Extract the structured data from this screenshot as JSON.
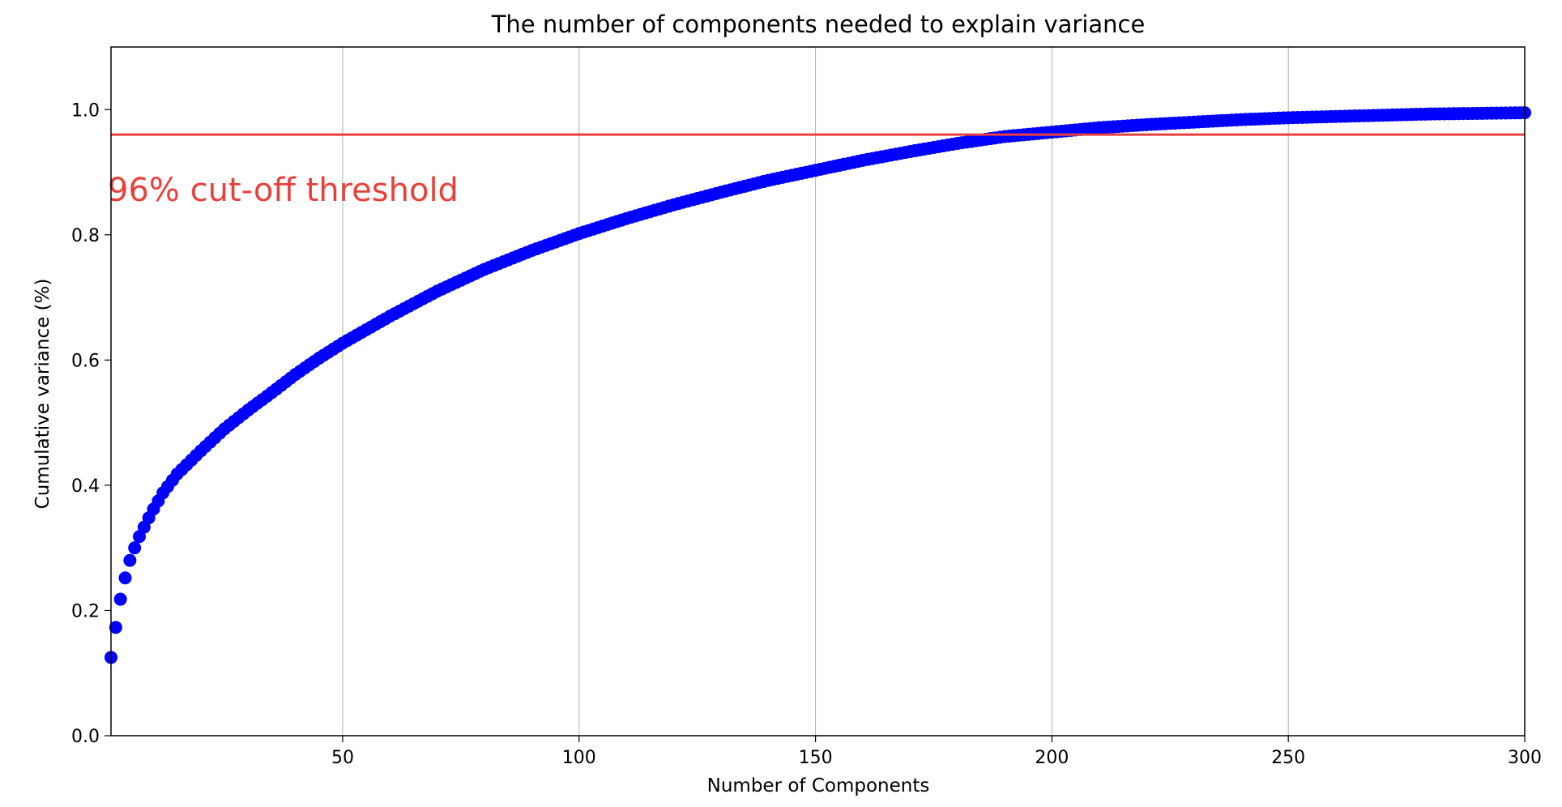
{
  "chart_data": {
    "type": "scatter",
    "title": "The number of components needed to explain variance",
    "xlabel": "Number of Components",
    "ylabel": "Cumulative variance (%)",
    "xlim": [
      1,
      300
    ],
    "ylim": [
      0.0,
      1.1
    ],
    "xticks": [
      "50",
      "100",
      "150",
      "200",
      "250",
      "300"
    ],
    "xtick_values": [
      50,
      100,
      150,
      200,
      250,
      300
    ],
    "yticks": [
      "0.0",
      "0.2",
      "0.4",
      "0.6",
      "0.8",
      "1.0"
    ],
    "ytick_values": [
      0.0,
      0.2,
      0.4,
      0.6,
      0.8,
      1.0
    ],
    "grid": "vertical",
    "marker_color": "#0000ff",
    "threshold": {
      "y": 0.96,
      "color": "#e8413c",
      "label": "96% cut-off threshold"
    },
    "series": [
      {
        "marker": "circle",
        "curve_points": [
          [
            1,
            0.125
          ],
          [
            2,
            0.173
          ],
          [
            3,
            0.218
          ],
          [
            4,
            0.252
          ],
          [
            5,
            0.28
          ],
          [
            6,
            0.3
          ],
          [
            7,
            0.318
          ],
          [
            8,
            0.333
          ],
          [
            9,
            0.348
          ],
          [
            10,
            0.362
          ],
          [
            12,
            0.388
          ],
          [
            15,
            0.418
          ],
          [
            20,
            0.455
          ],
          [
            25,
            0.49
          ],
          [
            30,
            0.52
          ],
          [
            35,
            0.548
          ],
          [
            40,
            0.577
          ],
          [
            45,
            0.603
          ],
          [
            50,
            0.627
          ],
          [
            60,
            0.67
          ],
          [
            70,
            0.71
          ],
          [
            80,
            0.745
          ],
          [
            90,
            0.775
          ],
          [
            100,
            0.802
          ],
          [
            110,
            0.826
          ],
          [
            120,
            0.848
          ],
          [
            130,
            0.868
          ],
          [
            140,
            0.887
          ],
          [
            150,
            0.903
          ],
          [
            160,
            0.919
          ],
          [
            170,
            0.933
          ],
          [
            180,
            0.946
          ],
          [
            190,
            0.957
          ],
          [
            200,
            0.964
          ],
          [
            210,
            0.971
          ],
          [
            220,
            0.976
          ],
          [
            230,
            0.98
          ],
          [
            240,
            0.984
          ],
          [
            250,
            0.987
          ],
          [
            260,
            0.989
          ],
          [
            270,
            0.991
          ],
          [
            280,
            0.993
          ],
          [
            290,
            0.994
          ],
          [
            300,
            0.995
          ]
        ]
      }
    ]
  }
}
